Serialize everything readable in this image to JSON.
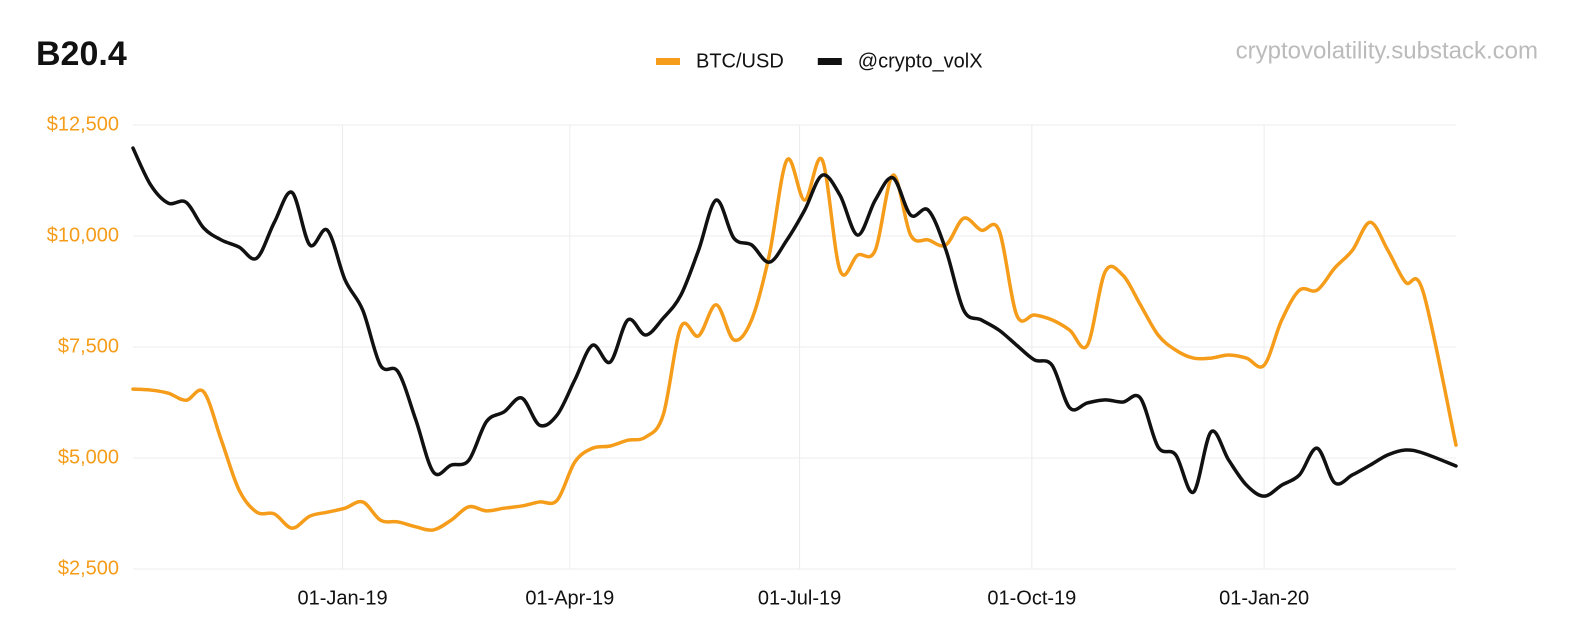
{
  "chart_data": {
    "type": "line",
    "title": "B20.4",
    "watermark": "cryptovolatility.substack.com",
    "legend": "top",
    "grid": true,
    "x": [
      "2018-10-10",
      "2018-10-17",
      "2018-10-24",
      "2018-10-31",
      "2018-11-07",
      "2018-11-14",
      "2018-11-21",
      "2018-11-28",
      "2018-12-05",
      "2018-12-12",
      "2018-12-19",
      "2018-12-26",
      "2019-01-02",
      "2019-01-09",
      "2019-01-16",
      "2019-01-23",
      "2019-01-30",
      "2019-02-06",
      "2019-02-13",
      "2019-02-20",
      "2019-02-27",
      "2019-03-06",
      "2019-03-13",
      "2019-03-20",
      "2019-03-27",
      "2019-04-03",
      "2019-04-10",
      "2019-04-17",
      "2019-04-24",
      "2019-05-01",
      "2019-05-08",
      "2019-05-15",
      "2019-05-22",
      "2019-05-29",
      "2019-06-05",
      "2019-06-12",
      "2019-06-19",
      "2019-06-26",
      "2019-07-03",
      "2019-07-10",
      "2019-07-17",
      "2019-07-24",
      "2019-07-31",
      "2019-08-07",
      "2019-08-14",
      "2019-08-21",
      "2019-08-28",
      "2019-09-04",
      "2019-09-11",
      "2019-09-18",
      "2019-09-25",
      "2019-10-02",
      "2019-10-09",
      "2019-10-16",
      "2019-10-23",
      "2019-10-30",
      "2019-11-06",
      "2019-11-13",
      "2019-11-20",
      "2019-11-27",
      "2019-12-04",
      "2019-12-11",
      "2019-12-18",
      "2019-12-25",
      "2020-01-01",
      "2020-01-08",
      "2020-01-15",
      "2020-01-22",
      "2020-01-29",
      "2020-02-05",
      "2020-02-12",
      "2020-02-19",
      "2020-02-26",
      "2020-03-04",
      "2020-03-17"
    ],
    "xlim": [
      "2018-10-10",
      "2020-03-17"
    ],
    "xticks": [
      {
        "value": "2019-01-01",
        "label": "01-Jan-19"
      },
      {
        "value": "2019-04-01",
        "label": "01-Apr-19"
      },
      {
        "value": "2019-07-01",
        "label": "01-Jul-19"
      },
      {
        "value": "2019-10-01",
        "label": "01-Oct-19"
      },
      {
        "value": "2020-01-01",
        "label": "01-Jan-20"
      }
    ],
    "ylim": [
      2500,
      12500
    ],
    "yticks": [
      {
        "value": 2500,
        "label": "$2,500"
      },
      {
        "value": 5000,
        "label": "$5,000"
      },
      {
        "value": 7500,
        "label": "$7,500"
      },
      {
        "value": 10000,
        "label": "$10,000"
      },
      {
        "value": 12500,
        "label": "$12,500"
      }
    ],
    "series": [
      {
        "name": "BTC/USD",
        "color": "#f59d1a",
        "values": [
          6550,
          6530,
          6460,
          6300,
          6490,
          5400,
          4280,
          3780,
          3740,
          3420,
          3690,
          3780,
          3870,
          4010,
          3600,
          3560,
          3450,
          3380,
          3600,
          3900,
          3810,
          3870,
          3920,
          4010,
          4050,
          4910,
          5220,
          5270,
          5400,
          5470,
          5970,
          7950,
          7750,
          8450,
          7660,
          8110,
          9570,
          11710,
          10810,
          11710,
          9230,
          9570,
          9680,
          11370,
          10020,
          9910,
          9800,
          10400,
          10130,
          10130,
          8220,
          8220,
          8110,
          7880,
          7540,
          9190,
          9120,
          8450,
          7770,
          7430,
          7250,
          7250,
          7320,
          7250,
          7090,
          8110,
          8780,
          8780,
          9280,
          9680,
          10310,
          9680,
          8960,
          8740,
          5290
        ]
      },
      {
        "name": "@crypto_volX",
        "color": "#111111",
        "values": [
          11980,
          11150,
          10740,
          10760,
          10180,
          9910,
          9750,
          9500,
          10310,
          10980,
          9800,
          10130,
          9010,
          8330,
          7090,
          6940,
          5860,
          4680,
          4840,
          4950,
          5820,
          6040,
          6350,
          5740,
          5970,
          6760,
          7540,
          7160,
          8110,
          7770,
          8150,
          8670,
          9680,
          10810,
          9950,
          9800,
          9410,
          9910,
          10580,
          11370,
          10920,
          10020,
          10810,
          11310,
          10470,
          10580,
          9680,
          8330,
          8110,
          7880,
          7540,
          7210,
          7090,
          6130,
          6240,
          6310,
          6260,
          6350,
          5250,
          5070,
          4230,
          5590,
          4950,
          4390,
          4140,
          4390,
          4620,
          5220,
          4440,
          4620,
          4840,
          5070,
          5180,
          5110,
          4820
        ]
      }
    ]
  }
}
